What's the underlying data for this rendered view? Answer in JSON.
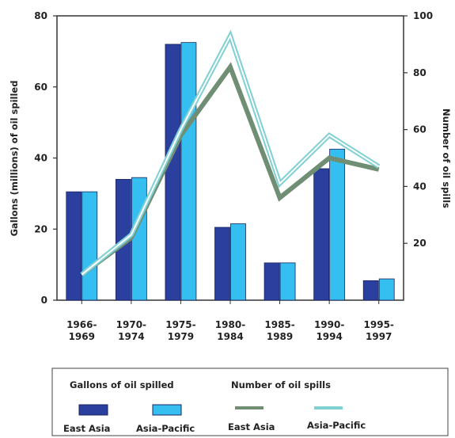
{
  "chart_data": {
    "type": "bar",
    "categories": [
      [
        "1966-",
        "1969"
      ],
      [
        "1970-",
        "1974"
      ],
      [
        "1975-",
        "1979"
      ],
      [
        "1980-",
        "1984"
      ],
      [
        "1985-",
        "1989"
      ],
      [
        "1990-",
        "1994"
      ],
      [
        "1995-",
        "1997"
      ]
    ],
    "ylabel": "Gallons (millions) of oil spilled",
    "y2label": "Number of oil spills",
    "ylim": [
      0,
      80
    ],
    "yticks": [
      "0",
      "20",
      "40",
      "60",
      "80"
    ],
    "y2lim": [
      0,
      100
    ],
    "y2ticks": [
      "20",
      "40",
      "60",
      "80",
      "100"
    ],
    "bar_series": [
      {
        "name": "East Asia",
        "color": "#2b3f9e",
        "values": [
          30.5,
          34,
          72,
          20.5,
          10.5,
          37,
          5.5
        ]
      },
      {
        "name": "Asia-Pacific",
        "color": "#35bff0",
        "values": [
          30.5,
          34.5,
          72.5,
          21.5,
          10.5,
          42.5,
          6
        ]
      }
    ],
    "line_series": [
      {
        "name": "East Asia",
        "color": "#6f8e73",
        "values": [
          9,
          22,
          58,
          82,
          36,
          50,
          46
        ]
      },
      {
        "name": "Asia-Pacific",
        "color": "#7fd0d4",
        "values": [
          9,
          23,
          60,
          93,
          41,
          58,
          47
        ]
      }
    ],
    "legend": {
      "bars_heading": "Gallons of oil spilled",
      "lines_heading": "Number of oil spills",
      "placement": "bottom"
    },
    "grid": false
  }
}
